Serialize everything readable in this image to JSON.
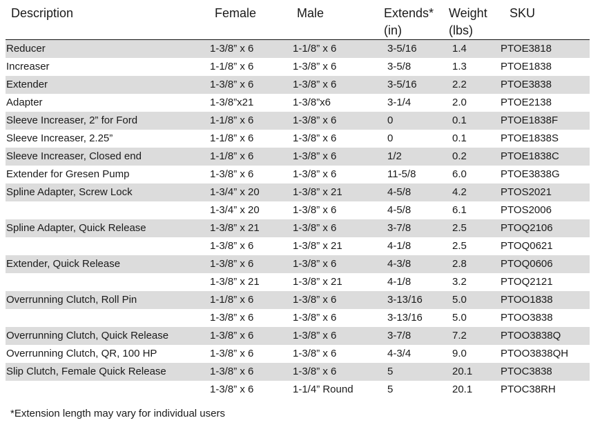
{
  "headers": {
    "description": "Description",
    "female": "Female",
    "male": "Male",
    "extends": "Extends*",
    "extends_unit": "(in)",
    "weight": "Weight",
    "weight_unit": "(lbs)",
    "sku": "SKU"
  },
  "rows": [
    {
      "description": "Reducer",
      "female": "1-3/8” x 6",
      "male": "1-1/8” x 6",
      "extends": "3-5/16",
      "weight": "1.4",
      "sku": "PTOE3818",
      "shaded": true
    },
    {
      "description": "Increaser",
      "female": "1-1/8” x 6",
      "male": "1-3/8” x 6",
      "extends": "3-5/8",
      "weight": "1.3",
      "sku": "PTOE1838",
      "shaded": false
    },
    {
      "description": "Extender",
      "female": "1-3/8” x 6",
      "male": "1-3/8” x 6",
      "extends": "3-5/16",
      "weight": "2.2",
      "sku": "PTOE3838",
      "shaded": true
    },
    {
      "description": "Adapter",
      "female": "1-3/8”x21",
      "male": "1-3/8”x6",
      "extends": "3-1/4",
      "weight": "2.0",
      "sku": "PTOE2138",
      "shaded": false
    },
    {
      "description": "Sleeve Increaser, 2” for Ford",
      "female": "1-1/8” x 6",
      "male": "1-3/8” x 6",
      "extends": "0",
      "weight": "0.1",
      "sku": "PTOE1838F",
      "shaded": true
    },
    {
      "description": "Sleeve Increaser, 2.25”",
      "female": "1-1/8” x 6",
      "male": "1-3/8” x 6",
      "extends": "0",
      "weight": "0.1",
      "sku": "PTOE1838S",
      "shaded": false
    },
    {
      "description": "Sleeve Increaser, Closed end",
      "female": "1-1/8” x 6",
      "male": "1-3/8” x 6",
      "extends": "1/2",
      "weight": "0.2",
      "sku": "PTOE1838C",
      "shaded": true
    },
    {
      "description": "Extender for Gresen Pump",
      "female": "1-3/8” x 6",
      "male": "1-3/8” x 6",
      "extends": "11-5/8",
      "weight": "6.0",
      "sku": "PTOE3838G",
      "shaded": false
    },
    {
      "description": "Spline Adapter, Screw Lock",
      "female": "1-3/4” x 20",
      "male": "1-3/8” x 21",
      "extends": "4-5/8",
      "weight": "4.2",
      "sku": "PTOS2021",
      "shaded": true
    },
    {
      "description": "",
      "female": "1-3/4” x 20",
      "male": "1-3/8” x 6",
      "extends": "4-5/8",
      "weight": "6.1",
      "sku": "PTOS2006",
      "shaded": false
    },
    {
      "description": "Spline Adapter, Quick Release",
      "female": "1-3/8” x 21",
      "male": "1-3/8” x 6",
      "extends": "3-7/8",
      "weight": "2.5",
      "sku": "PTOQ2106",
      "shaded": true
    },
    {
      "description": "",
      "female": "1-3/8” x 6",
      "male": "1-3/8” x 21",
      "extends": "4-1/8",
      "weight": "2.5",
      "sku": "PTOQ0621",
      "shaded": false
    },
    {
      "description": "Extender, Quick Release",
      "female": "1-3/8” x 6",
      "male": "1-3/8” x 6",
      "extends": "4-3/8",
      "weight": "2.8",
      "sku": "PTOQ0606",
      "shaded": true
    },
    {
      "description": "",
      "female": "1-3/8” x 21",
      "male": "1-3/8” x 21",
      "extends": "4-1/8",
      "weight": "3.2",
      "sku": "PTOQ2121",
      "shaded": false
    },
    {
      "description": "Overrunning Clutch, Roll Pin",
      "female": "1-1/8” x 6",
      "male": "1-3/8” x 6",
      "extends": "3-13/16",
      "weight": "5.0",
      "sku": "PTOO1838",
      "shaded": true
    },
    {
      "description": "",
      "female": "1-3/8” x 6",
      "male": "1-3/8” x 6",
      "extends": "3-13/16",
      "weight": "5.0",
      "sku": "PTOO3838",
      "shaded": false
    },
    {
      "description": "Overrunning Clutch, Quick Release",
      "female": "1-3/8” x 6",
      "male": "1-3/8” x 6",
      "extends": "3-7/8",
      "weight": "7.2",
      "sku": "PTOO3838Q",
      "shaded": true
    },
    {
      "description": "Overrunning Clutch, QR, 100 HP",
      "female": "1-3/8” x 6",
      "male": "1-3/8” x 6",
      "extends": "4-3/4",
      "weight": "9.0",
      "sku": "PTOO3838QH",
      "shaded": false
    },
    {
      "description": "Slip Clutch, Female Quick Release",
      "female": "1-3/8” x 6",
      "male": "1-3/8” x 6",
      "extends": "5",
      "weight": "20.1",
      "sku": "PTOC3838",
      "shaded": true
    },
    {
      "description": "",
      "female": "1-3/8” x 6",
      "male": "1-1/4” Round",
      "extends": "5",
      "weight": "20.1",
      "sku": "PTOC38RH",
      "shaded": false
    }
  ],
  "footnote": "*Extension length may vary for individual users"
}
